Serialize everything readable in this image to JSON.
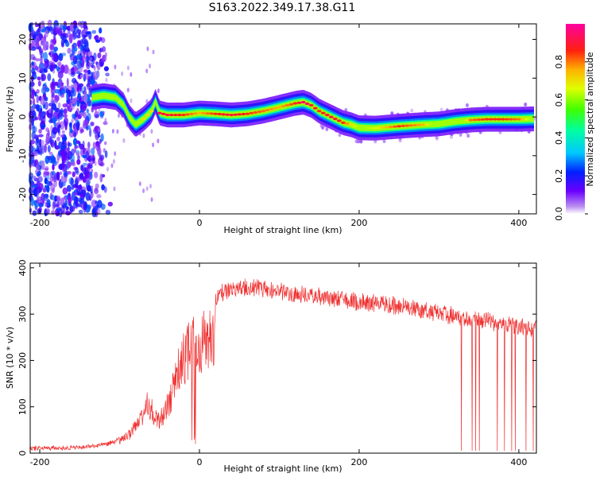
{
  "title": "S163.2022.349.17.38.G11",
  "colors": {
    "snr_line": "#f03030",
    "axis": "#000000"
  },
  "chart_data": [
    {
      "type": "heatmap",
      "title": "S163.2022.349.17.38.G11",
      "xlabel": "Height of straight line (km)",
      "ylabel": "Frequency (Hz)",
      "xlim": [
        -212,
        422
      ],
      "ylim": [
        -25,
        24
      ],
      "x_ticks": [
        -200,
        0,
        200,
        400
      ],
      "y_ticks": [
        -20,
        -10,
        0,
        10,
        20
      ],
      "colorbar": {
        "label": "Normalized spectral amplitude",
        "range": [
          0,
          1
        ],
        "ticks": [
          0.0,
          0.2,
          0.4,
          0.6,
          0.8
        ],
        "colormap": "rainbow (purple-blue-cyan-green-yellow-red-magenta)"
      },
      "ridge": {
        "x": [
          -135,
          -120,
          -105,
          -95,
          -88,
          -80,
          -70,
          -60,
          -55,
          -50,
          -40,
          -20,
          0,
          20,
          40,
          60,
          80,
          100,
          110,
          120,
          130,
          140,
          150,
          160,
          170,
          180,
          190,
          200,
          220,
          250,
          280,
          300,
          320,
          340,
          360,
          380,
          400,
          420
        ],
        "y": [
          5,
          5.5,
          5,
          3,
          0,
          -2,
          -0.5,
          1.5,
          4,
          1,
          0.5,
          0.5,
          1,
          0.8,
          0.5,
          0.8,
          1.5,
          2.5,
          3,
          3.5,
          3.8,
          3,
          1.5,
          0.5,
          -0.5,
          -1.5,
          -2,
          -2.8,
          -2.9,
          -2.4,
          -2,
          -1.8,
          -1.2,
          -0.8,
          -0.6,
          -0.6,
          -0.6,
          -0.5
        ],
        "amplitude": [
          0.4,
          0.45,
          0.45,
          0.5,
          0.5,
          0.55,
          0.7,
          0.7,
          0.5,
          0.9,
          0.9,
          0.85,
          0.75,
          0.85,
          0.9,
          0.85,
          0.8,
          0.75,
          0.8,
          0.85,
          0.95,
          0.9,
          0.85,
          0.9,
          0.9,
          0.85,
          0.7,
          0.6,
          0.65,
          0.85,
          0.75,
          0.5,
          0.35,
          0.8,
          0.85,
          0.85,
          0.8,
          0.5
        ]
      },
      "noise_region_x": [
        -212,
        -120
      ]
    },
    {
      "type": "line",
      "xlabel": "Height of straight line (km)",
      "ylabel": "SNR (10 * v/v)",
      "xlim": [
        -212,
        422
      ],
      "ylim": [
        0,
        410
      ],
      "x_ticks": [
        -200,
        0,
        200,
        400
      ],
      "y_ticks": [
        0,
        100,
        200,
        300,
        400
      ],
      "envelope": {
        "x": [
          -212,
          -150,
          -120,
          -105,
          -95,
          -85,
          -75,
          -70,
          -65,
          -60,
          -55,
          -50,
          -45,
          -40,
          -35,
          -30,
          -25,
          -20,
          -15,
          -10,
          -5,
          0,
          10,
          20,
          30,
          40,
          60,
          80,
          100,
          150,
          200,
          250,
          300,
          330,
          350,
          370,
          400,
          422
        ],
        "y": [
          10,
          12,
          18,
          25,
          40,
          60,
          90,
          120,
          150,
          120,
          100,
          90,
          110,
          130,
          160,
          200,
          240,
          260,
          280,
          290,
          300,
          305,
          330,
          350,
          365,
          372,
          375,
          372,
          365,
          355,
          345,
          335,
          320,
          310,
          305,
          300,
          290,
          285
        ]
      },
      "dropouts_x_range": [
        325,
        420
      ]
    }
  ]
}
